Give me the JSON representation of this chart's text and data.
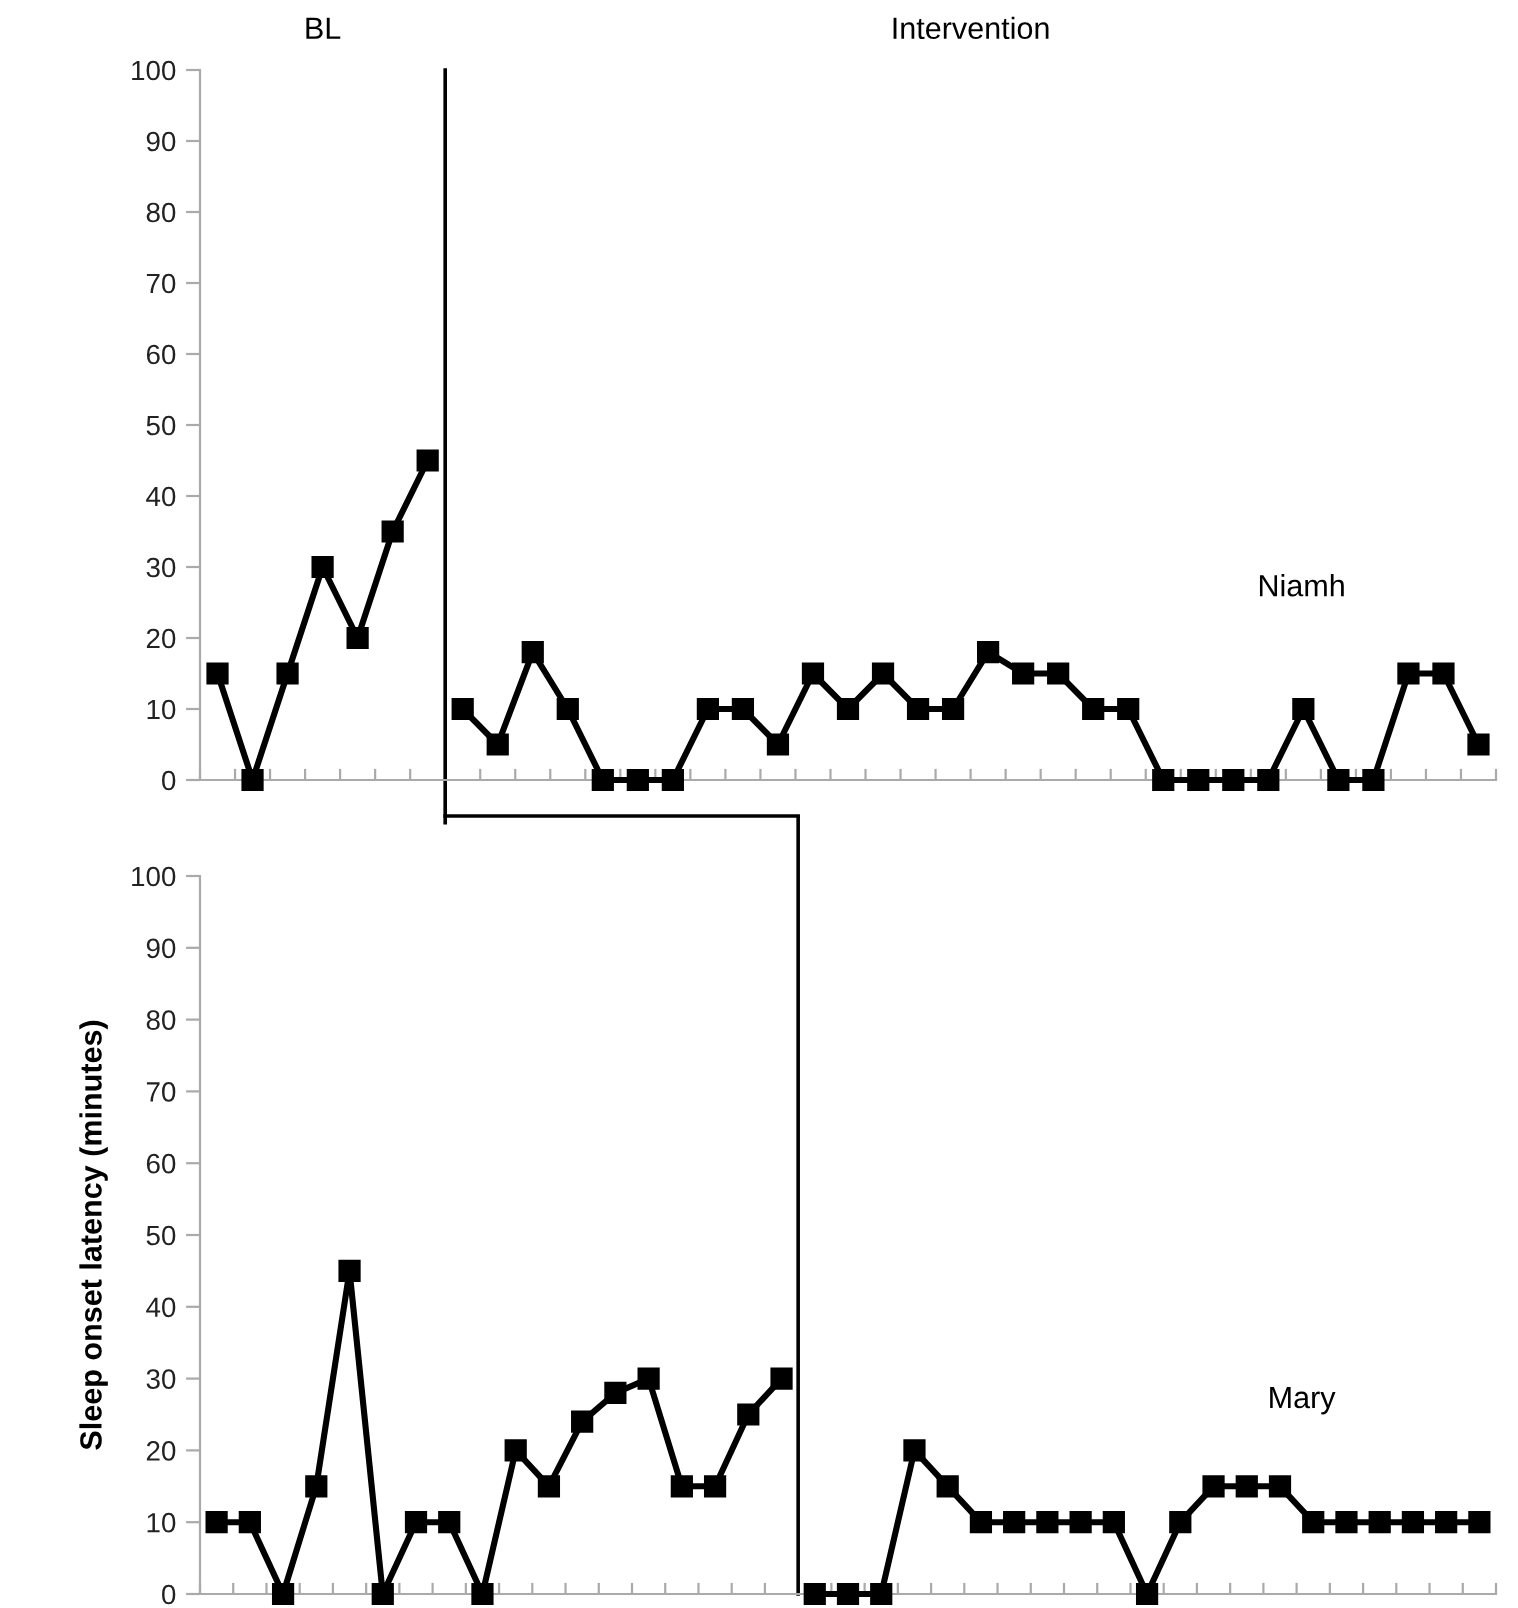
{
  "chart_data": [
    {
      "type": "line",
      "categories": [
        null,
        null,
        null,
        null,
        null,
        null,
        null,
        null,
        null,
        null,
        null,
        null,
        null,
        null,
        null,
        null,
        null,
        null,
        null,
        null,
        null,
        null,
        null,
        null,
        null,
        null,
        null,
        null,
        null,
        null,
        null,
        null,
        null,
        null,
        null,
        null,
        null
      ],
      "series": [
        {
          "color": "#000000",
          "values": [
            15,
            0,
            15,
            30,
            20,
            35,
            45,
            null,
            null,
            null,
            null,
            null,
            null,
            null,
            null,
            null,
            null,
            null,
            null,
            null,
            null,
            null,
            null,
            null,
            null,
            null,
            null,
            null,
            null,
            null,
            null,
            null,
            null,
            null,
            null,
            null,
            null
          ]
        },
        {
          "name": "Niamh",
          "color": "#000000",
          "values": [
            null,
            null,
            null,
            null,
            null,
            null,
            null,
            10,
            5,
            18,
            10,
            0,
            0,
            0,
            10,
            10,
            5,
            15,
            10,
            15,
            10,
            10,
            18,
            15,
            15,
            10,
            10,
            0,
            0,
            0,
            0,
            10,
            0,
            0,
            15,
            15,
            5
          ]
        }
      ],
      "ylim": [
        0,
        100
      ],
      "yticks": [
        0,
        10,
        20,
        30,
        40,
        50,
        60,
        70,
        80,
        90,
        100
      ],
      "marker": "square",
      "line_style": "solid",
      "grid": false,
      "legend": false,
      "annotations": [
        "BL",
        "Intervention"
      ]
    },
    {
      "type": "line",
      "categories": [
        null,
        null,
        null,
        null,
        null,
        null,
        null,
        null,
        null,
        null,
        null,
        null,
        null,
        null,
        null,
        null,
        null,
        null,
        null,
        null,
        null,
        null,
        null,
        null,
        null,
        null,
        null,
        null,
        null,
        null,
        null,
        null,
        null,
        null,
        null,
        null,
        null,
        null,
        null
      ],
      "series": [
        {
          "color": "#000000",
          "values": [
            10,
            10,
            0,
            15,
            45,
            0,
            10,
            10,
            0,
            20,
            15,
            24,
            28,
            30,
            15,
            15,
            25,
            30,
            null,
            null,
            null,
            null,
            null,
            null,
            null,
            null,
            null,
            null,
            null,
            null,
            null,
            null,
            null,
            null,
            null,
            null,
            null,
            null,
            null
          ]
        },
        {
          "name": "Mary",
          "color": "#000000",
          "values": [
            null,
            null,
            null,
            null,
            null,
            null,
            null,
            null,
            null,
            null,
            null,
            null,
            null,
            null,
            null,
            null,
            null,
            null,
            0,
            0,
            0,
            20,
            15,
            10,
            10,
            10,
            10,
            10,
            0,
            10,
            15,
            15,
            15,
            10,
            10,
            10,
            10,
            10,
            10
          ]
        }
      ],
      "ylabel": "Sleep onset latency (minutes)",
      "ylim": [
        0,
        100
      ],
      "yticks": [
        0,
        10,
        20,
        30,
        40,
        50,
        60,
        70,
        80,
        90,
        100
      ],
      "marker": "square",
      "line_style": "solid",
      "grid": false,
      "legend": false
    }
  ]
}
